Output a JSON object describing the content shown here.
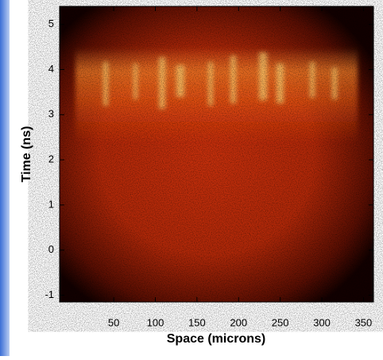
{
  "chart_data": {
    "type": "image",
    "x_label": "Space (microns)",
    "y_label": "Time (ns)",
    "xlim": [
      -15,
      362
    ],
    "xticks": [
      50,
      100,
      150,
      200,
      250,
      300,
      350
    ],
    "ylim": [
      -1.15,
      5.4
    ],
    "yticks": [
      -1,
      0,
      1,
      2,
      3,
      4,
      5
    ]
  }
}
